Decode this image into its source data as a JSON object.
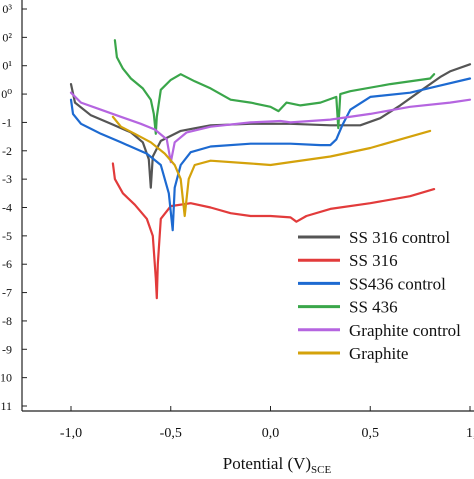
{
  "chart_data": {
    "type": "line",
    "xlabel": "Potential (V)",
    "xlabel_sub": "SCE",
    "ylabel": "",
    "xlim": [
      -1.2,
      1.0
    ],
    "ylim": [
      -11,
      3
    ],
    "x_ticks": [
      -1.0,
      -0.5,
      0.0,
      0.5,
      1.0
    ],
    "x_tick_labels": [
      "-1,0",
      "-0,5",
      "0,0",
      "0,5",
      "1,"
    ],
    "y_ticks": [
      3,
      2,
      1,
      0,
      -1,
      -2,
      -3,
      -4,
      -5,
      -6,
      -7,
      -8,
      -9,
      -10,
      -11
    ],
    "y_tick_labels": [
      "0³",
      "0²",
      "0¹",
      "0⁰",
      "-1",
      "-2",
      "-3",
      "-4",
      "-5",
      "-6",
      "-7",
      "-8",
      "-9",
      "10",
      "11"
    ],
    "grid": false,
    "legend_position": "bottom-right",
    "series": [
      {
        "name": "SS 316 control",
        "color": "#555555",
        "points": [
          [
            -1.0,
            0.35
          ],
          [
            -0.98,
            -0.3
          ],
          [
            -0.9,
            -0.75
          ],
          [
            -0.8,
            -1.05
          ],
          [
            -0.7,
            -1.35
          ],
          [
            -0.64,
            -1.7
          ],
          [
            -0.61,
            -2.3
          ],
          [
            -0.6,
            -3.3
          ],
          [
            -0.59,
            -2.2
          ],
          [
            -0.55,
            -1.65
          ],
          [
            -0.45,
            -1.3
          ],
          [
            -0.3,
            -1.1
          ],
          [
            -0.1,
            -1.05
          ],
          [
            0.1,
            -1.05
          ],
          [
            0.3,
            -1.1
          ],
          [
            0.45,
            -1.1
          ],
          [
            0.55,
            -0.85
          ],
          [
            0.65,
            -0.4
          ],
          [
            0.75,
            0.1
          ],
          [
            0.85,
            0.6
          ],
          [
            0.9,
            0.8
          ],
          [
            1.0,
            1.05
          ]
        ]
      },
      {
        "name": "SS 316",
        "color": "#e23b3b",
        "points": [
          [
            -0.79,
            -2.45
          ],
          [
            -0.78,
            -3.0
          ],
          [
            -0.74,
            -3.5
          ],
          [
            -0.68,
            -3.9
          ],
          [
            -0.62,
            -4.4
          ],
          [
            -0.59,
            -5.0
          ],
          [
            -0.575,
            -6.5
          ],
          [
            -0.57,
            -7.2
          ],
          [
            -0.565,
            -6.0
          ],
          [
            -0.55,
            -4.4
          ],
          [
            -0.5,
            -3.95
          ],
          [
            -0.4,
            -3.85
          ],
          [
            -0.3,
            -4.0
          ],
          [
            -0.2,
            -4.2
          ],
          [
            -0.1,
            -4.3
          ],
          [
            0.0,
            -4.3
          ],
          [
            0.1,
            -4.35
          ],
          [
            0.13,
            -4.5
          ],
          [
            0.18,
            -4.3
          ],
          [
            0.3,
            -4.05
          ],
          [
            0.5,
            -3.85
          ],
          [
            0.7,
            -3.6
          ],
          [
            0.82,
            -3.35
          ]
        ]
      },
      {
        "name": "SS436 control",
        "color": "#1d6ad1",
        "points": [
          [
            -1.0,
            -0.2
          ],
          [
            -0.99,
            -0.7
          ],
          [
            -0.95,
            -1.05
          ],
          [
            -0.85,
            -1.4
          ],
          [
            -0.75,
            -1.7
          ],
          [
            -0.62,
            -2.1
          ],
          [
            -0.55,
            -2.5
          ],
          [
            -0.51,
            -3.5
          ],
          [
            -0.49,
            -4.8
          ],
          [
            -0.48,
            -3.3
          ],
          [
            -0.45,
            -2.5
          ],
          [
            -0.4,
            -2.05
          ],
          [
            -0.3,
            -1.85
          ],
          [
            -0.1,
            -1.75
          ],
          [
            0.1,
            -1.75
          ],
          [
            0.25,
            -1.8
          ],
          [
            0.3,
            -1.8
          ],
          [
            0.33,
            -1.6
          ],
          [
            0.36,
            -1.1
          ],
          [
            0.4,
            -0.55
          ],
          [
            0.5,
            -0.1
          ],
          [
            0.7,
            0.05
          ],
          [
            0.85,
            0.3
          ],
          [
            1.0,
            0.55
          ]
        ]
      },
      {
        "name": "SS 436",
        "color": "#3aa64a",
        "points": [
          [
            -0.78,
            1.9
          ],
          [
            -0.77,
            1.3
          ],
          [
            -0.74,
            0.9
          ],
          [
            -0.7,
            0.55
          ],
          [
            -0.64,
            0.2
          ],
          [
            -0.6,
            -0.2
          ],
          [
            -0.585,
            -0.7
          ],
          [
            -0.575,
            -1.4
          ],
          [
            -0.57,
            -0.8
          ],
          [
            -0.55,
            0.15
          ],
          [
            -0.5,
            0.5
          ],
          [
            -0.45,
            0.7
          ],
          [
            -0.38,
            0.45
          ],
          [
            -0.3,
            0.2
          ],
          [
            -0.2,
            -0.2
          ],
          [
            -0.1,
            -0.3
          ],
          [
            0.0,
            -0.45
          ],
          [
            0.04,
            -0.6
          ],
          [
            0.08,
            -0.3
          ],
          [
            0.15,
            -0.4
          ],
          [
            0.25,
            -0.3
          ],
          [
            0.33,
            -0.1
          ],
          [
            0.34,
            -1.2
          ],
          [
            0.35,
            0.0
          ],
          [
            0.4,
            0.1
          ],
          [
            0.6,
            0.35
          ],
          [
            0.8,
            0.55
          ],
          [
            0.82,
            0.7
          ]
        ]
      },
      {
        "name": "Graphite control",
        "color": "#b565e0",
        "points": [
          [
            -1.0,
            0.05
          ],
          [
            -0.95,
            -0.3
          ],
          [
            -0.85,
            -0.55
          ],
          [
            -0.75,
            -0.8
          ],
          [
            -0.65,
            -1.05
          ],
          [
            -0.58,
            -1.25
          ],
          [
            -0.52,
            -1.6
          ],
          [
            -0.5,
            -2.4
          ],
          [
            -0.48,
            -1.7
          ],
          [
            -0.42,
            -1.35
          ],
          [
            -0.3,
            -1.15
          ],
          [
            -0.1,
            -1.0
          ],
          [
            0.05,
            -0.95
          ],
          [
            0.1,
            -1.0
          ],
          [
            0.3,
            -0.9
          ],
          [
            0.5,
            -0.7
          ],
          [
            0.7,
            -0.45
          ],
          [
            0.9,
            -0.3
          ],
          [
            1.0,
            -0.2
          ]
        ]
      },
      {
        "name": "Graphite",
        "color": "#d4a20b",
        "points": [
          [
            -0.79,
            -0.8
          ],
          [
            -0.75,
            -1.15
          ],
          [
            -0.68,
            -1.4
          ],
          [
            -0.6,
            -1.7
          ],
          [
            -0.53,
            -2.1
          ],
          [
            -0.48,
            -2.5
          ],
          [
            -0.45,
            -3.0
          ],
          [
            -0.43,
            -4.3
          ],
          [
            -0.41,
            -3.0
          ],
          [
            -0.38,
            -2.5
          ],
          [
            -0.3,
            -2.35
          ],
          [
            -0.1,
            -2.45
          ],
          [
            0.0,
            -2.5
          ],
          [
            0.1,
            -2.4
          ],
          [
            0.3,
            -2.2
          ],
          [
            0.5,
            -1.9
          ],
          [
            0.65,
            -1.6
          ],
          [
            0.8,
            -1.3
          ]
        ]
      }
    ]
  }
}
